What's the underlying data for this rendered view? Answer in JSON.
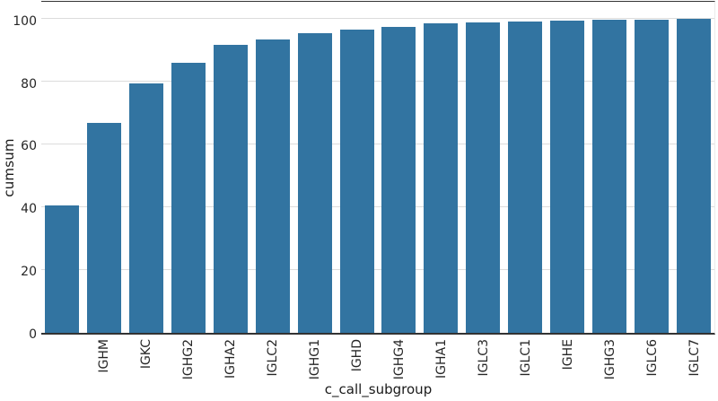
{
  "chart_data": {
    "type": "bar",
    "title": "",
    "xlabel": "c_call_subgroup",
    "ylabel": "cumsum",
    "categories": [
      "",
      "IGHM",
      "IGKC",
      "IGHG2",
      "IGHA2",
      "IGLC2",
      "IGHG1",
      "IGHD",
      "IGHG4",
      "IGHA1",
      "IGLC3",
      "IGLC1",
      "IGHE",
      "IGHG3",
      "IGLC6",
      "IGLC7"
    ],
    "values": [
      40.5,
      67.0,
      79.5,
      86.0,
      91.7,
      93.6,
      95.4,
      96.7,
      97.6,
      98.5,
      99.0,
      99.3,
      99.6,
      99.8,
      99.9,
      100.0
    ],
    "yticks": [
      0,
      20,
      40,
      60,
      80,
      100
    ],
    "ylim": [
      0,
      105.5
    ],
    "grid": "horizontal",
    "legend": "none",
    "colors": {
      "bar": "#3274a1",
      "grid": "#dcdcdc",
      "spine": "#333333",
      "tick_text": "#262626",
      "label_text": "#1a1a1a",
      "background": "#ffffff"
    }
  }
}
